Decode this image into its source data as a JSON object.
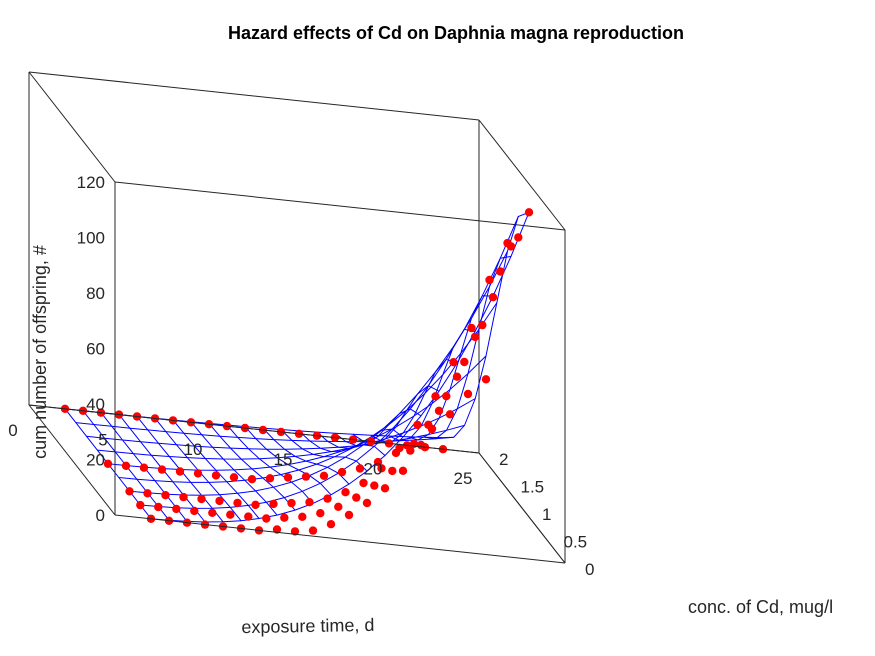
{
  "chart_data": {
    "type": "surface3d",
    "title": "Hazard effects of Cd on Daphnia magna reproduction",
    "xlabel": "exposure time, d",
    "ylabel": "conc. of Cd, mug/l",
    "zlabel": "cum number of offspring, #",
    "xlim": [
      0,
      25
    ],
    "ylim": [
      0,
      2
    ],
    "zlim": [
      0,
      120
    ],
    "xticks": [
      0,
      5,
      10,
      15,
      20,
      25
    ],
    "yticks": [
      0,
      0.5,
      1,
      1.5,
      2
    ],
    "zticks": [
      0,
      20,
      40,
      60,
      80,
      100,
      120
    ],
    "grid": false,
    "surface_color": "#0000ff",
    "marker_color": "#ff0000",
    "model": {
      "concentrations": [
        0,
        0.25,
        0.5,
        0.75,
        1,
        1.25,
        1.5,
        1.75,
        2
      ],
      "times": [
        2,
        3,
        4,
        5,
        6,
        7,
        8,
        9,
        10,
        11,
        12,
        13,
        14,
        15,
        16,
        17,
        18,
        19,
        20,
        21,
        22,
        23
      ]
    },
    "observations": {
      "concentrations": [
        0,
        0.25,
        0.5,
        1,
        2
      ],
      "times": [
        2,
        3,
        4,
        5,
        6,
        7,
        8,
        9,
        10,
        11,
        12,
        13,
        14,
        15,
        16,
        17,
        18,
        19,
        20,
        21,
        22,
        23
      ],
      "values": [
        [
          0,
          0,
          0,
          0,
          0,
          0,
          0,
          1,
          1,
          2,
          5,
          9,
          14,
          20,
          27,
          37,
          50,
          63,
          78,
          93,
          112,
          125
        ],
        [
          0,
          0,
          0,
          0,
          0,
          0,
          0,
          0,
          1,
          2,
          4,
          7,
          11,
          16,
          22,
          30,
          40,
          51,
          64,
          78,
          98,
          111
        ],
        [
          0,
          0,
          0,
          0,
          0,
          0,
          0,
          0,
          1,
          2,
          3,
          5,
          8,
          12,
          18,
          26,
          35,
          46,
          59,
          72,
          90,
          104
        ],
        [
          0,
          0,
          0,
          0,
          0,
          0,
          0,
          0,
          0,
          1,
          2,
          3,
          4,
          6,
          8,
          11,
          15,
          19,
          25,
          31,
          39,
          45
        ],
        [
          0,
          0,
          0,
          0,
          0,
          0,
          0,
          0,
          0,
          0,
          0,
          0,
          0,
          0,
          0,
          0,
          0,
          0,
          0,
          0,
          0,
          0
        ]
      ]
    }
  }
}
